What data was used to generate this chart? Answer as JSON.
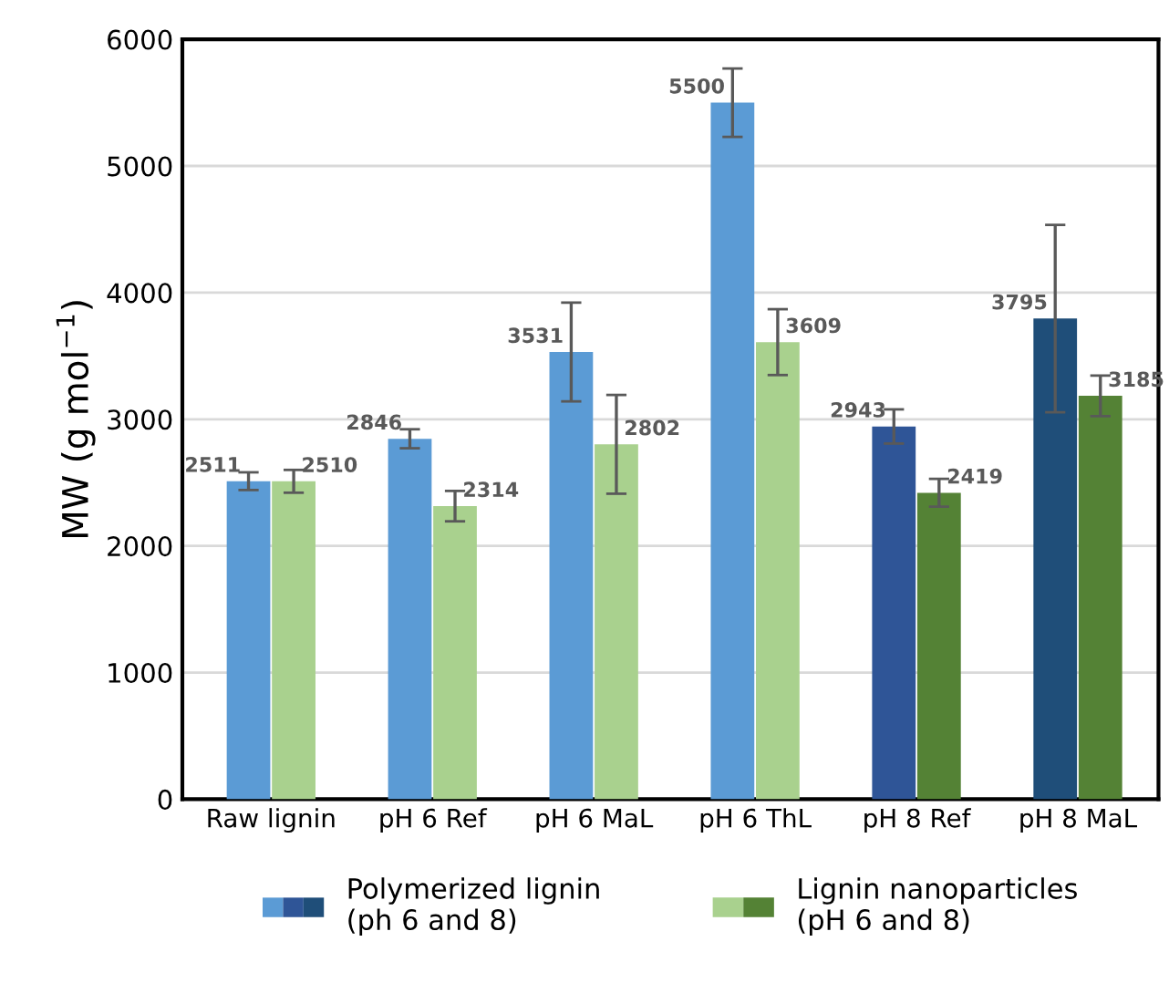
{
  "chart_data": {
    "type": "bar",
    "ylabel": "MW (g mol$^{−1}$)",
    "categories": [
      "Raw lignin",
      "pH 6 Ref",
      "pH 6 MaL",
      "pH 6 ThL",
      "pH 8 Ref",
      "pH 8 MaL"
    ],
    "series": [
      {
        "name": "Polymerized lignin\n(ph 6 and 8)",
        "colors": [
          "#5b9bd5",
          "#5b9bd5",
          "#5b9bd5",
          "#5b9bd5",
          "#2f5597",
          "#1f4e79"
        ],
        "values": [
          2511,
          2846,
          3531,
          5500,
          2943,
          3795
        ],
        "errors": [
          70,
          75,
          390,
          270,
          135,
          740
        ]
      },
      {
        "name": "Lignin nanoparticles\n(pH 6 and 8)",
        "colors": [
          "#a9d18e",
          "#a9d18e",
          "#a9d18e",
          "#a9d18e",
          "#548235",
          "#548235"
        ],
        "values": [
          2510,
          2314,
          2802,
          3609,
          2419,
          3185
        ],
        "errors": [
          90,
          120,
          390,
          260,
          110,
          160
        ]
      }
    ],
    "ylim": [
      0,
      6000
    ],
    "yticks": [
      0,
      1000,
      2000,
      3000,
      4000,
      5000,
      6000
    ],
    "grid": "y",
    "legend": "bottom",
    "data_labels": true
  }
}
